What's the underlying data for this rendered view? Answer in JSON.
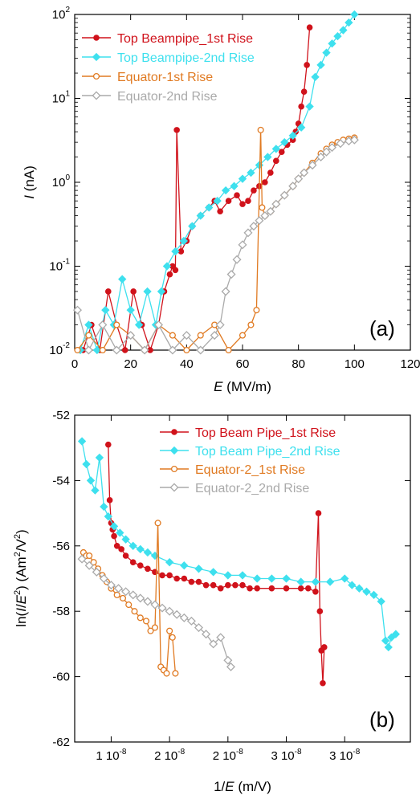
{
  "chart_data": [
    {
      "type": "scatter",
      "panel_label": "(a)",
      "xlabel": {
        "var": "E",
        "unit": " (MV/m)"
      },
      "ylabel": {
        "var": "I",
        "unit": " (nA)"
      },
      "xlim": [
        0,
        120
      ],
      "ylim": [
        0.01,
        100
      ],
      "yscale": "log",
      "xticks": [
        0,
        20,
        40,
        60,
        80,
        100,
        120
      ],
      "xtick_labels": [
        "0",
        "20",
        "40",
        "60",
        "80",
        "100",
        "120"
      ],
      "yticks": [
        0.01,
        0.1,
        1,
        10,
        100
      ],
      "ytick_labels": [
        {
          "base": "10",
          "exp": "-2"
        },
        {
          "base": "10",
          "exp": "-1"
        },
        {
          "base": "10",
          "exp": "0"
        },
        {
          "base": "10",
          "exp": "1"
        },
        {
          "base": "10",
          "exp": "2"
        }
      ],
      "grid": false,
      "legend": "top-left",
      "series": [
        {
          "name": "Top Beampipe_1st Rise",
          "color": "#d0121b",
          "marker": "circle-filled",
          "x": [
            3,
            6,
            9,
            12,
            15,
            18,
            21,
            24,
            27,
            30,
            32,
            34,
            35,
            36,
            36.5,
            38,
            40,
            42,
            45,
            48,
            50,
            52,
            55,
            58,
            60,
            62,
            64,
            66,
            68,
            70,
            72,
            74,
            76,
            78,
            79,
            80,
            81,
            82,
            83,
            84
          ],
          "y": [
            0.01,
            0.02,
            0.01,
            0.05,
            0.02,
            0.01,
            0.05,
            0.02,
            0.01,
            0.02,
            0.05,
            0.08,
            0.1,
            0.09,
            4.2,
            0.15,
            0.2,
            0.3,
            0.4,
            0.5,
            0.6,
            0.45,
            0.6,
            0.7,
            0.55,
            0.6,
            0.8,
            0.9,
            1.0,
            1.3,
            1.8,
            2.3,
            2.8,
            3.2,
            4.0,
            5.0,
            8.0,
            12,
            25,
            70
          ]
        },
        {
          "name": "Top Beampipe-2nd Rise",
          "color": "#3ee0ee",
          "marker": "diamond-filled",
          "x": [
            2,
            5,
            8,
            11,
            14,
            17,
            20,
            23,
            26,
            29,
            31,
            33,
            36,
            39,
            42,
            45,
            48,
            51,
            54,
            57,
            60,
            63,
            66,
            69,
            72,
            75,
            78,
            81,
            84,
            86,
            88,
            90,
            92,
            94,
            96,
            98,
            100
          ],
          "y": [
            0.01,
            0.02,
            0.01,
            0.03,
            0.02,
            0.07,
            0.03,
            0.02,
            0.05,
            0.02,
            0.05,
            0.1,
            0.15,
            0.2,
            0.3,
            0.4,
            0.5,
            0.6,
            0.8,
            0.9,
            1.1,
            1.3,
            1.6,
            2.0,
            2.5,
            3.0,
            3.6,
            4.5,
            8.0,
            18,
            25,
            35,
            45,
            55,
            65,
            80,
            100
          ]
        },
        {
          "name": "Equator-1st Rise",
          "color": "#e07a22",
          "marker": "circle-open",
          "x": [
            1,
            5,
            10,
            15,
            20,
            25,
            30,
            35,
            40,
            45,
            50,
            55,
            60,
            63,
            65,
            66.5,
            67,
            68,
            70,
            72,
            75,
            78,
            80,
            82,
            85,
            88,
            90,
            92,
            94,
            96,
            98,
            100
          ],
          "y": [
            0.01,
            0.015,
            0.01,
            0.02,
            0.015,
            0.01,
            0.02,
            0.015,
            0.01,
            0.015,
            0.02,
            0.01,
            0.015,
            0.02,
            0.03,
            4.2,
            0.5,
            0.4,
            0.45,
            0.55,
            0.7,
            0.9,
            1.1,
            1.3,
            1.7,
            2.2,
            2.5,
            2.8,
            3.0,
            3.2,
            3.3,
            3.4
          ]
        },
        {
          "name": "Equator-2nd Rise",
          "color": "#aaaaaa",
          "marker": "diamond-open",
          "x": [
            1,
            5,
            10,
            15,
            20,
            25,
            30,
            35,
            40,
            45,
            50,
            52,
            54,
            56,
            58,
            60,
            62,
            64,
            66,
            68,
            70,
            72,
            75,
            78,
            80,
            82,
            85,
            88,
            90,
            92,
            95,
            98,
            100
          ],
          "y": [
            0.03,
            0.01,
            0.02,
            0.01,
            0.015,
            0.01,
            0.02,
            0.01,
            0.015,
            0.01,
            0.015,
            0.02,
            0.05,
            0.08,
            0.12,
            0.18,
            0.25,
            0.3,
            0.35,
            0.4,
            0.45,
            0.55,
            0.7,
            0.9,
            1.1,
            1.3,
            1.6,
            2.0,
            2.3,
            2.6,
            2.9,
            3.1,
            3.2
          ]
        }
      ]
    },
    {
      "type": "scatter",
      "panel_label": "(b)",
      "xlabel": {
        "pre": "1/",
        "var": "E",
        "unit": " (m/V)"
      },
      "ylabel": {
        "pre": "ln(",
        "var1": "I",
        "slash": "/",
        "var2": "E",
        "sup": "2",
        "unit_a": ") (Am",
        "sup2": "2",
        "unit_b": "/V",
        "sup3": "2",
        "unit_c": ")"
      },
      "xlim": [
        0.95,
        3.25
      ],
      "ylim": [
        -62,
        -52
      ],
      "xticks": [
        1.2,
        1.6,
        2.0,
        2.4,
        2.8
      ],
      "xtick_labels": [
        {
          "mant": "1",
          "base": " 10",
          "exp": "-8"
        },
        {
          "mant": "2",
          "base": " 10",
          "exp": "-8"
        },
        {
          "mant": "2",
          "base": " 10",
          "exp": "-8"
        },
        {
          "mant": "3",
          "base": " 10",
          "exp": "-8"
        },
        {
          "mant": "3",
          "base": " 10",
          "exp": "-8"
        }
      ],
      "yticks": [
        -62,
        -60,
        -58,
        -56,
        -54,
        -52
      ],
      "ytick_labels": [
        "-62",
        "-60",
        "-58",
        "-56",
        "-54",
        "-52"
      ],
      "grid": false,
      "legend": "top-right",
      "series": [
        {
          "name": "Top Beam Pipe_1st Rise",
          "color": "#d0121b",
          "marker": "circle-filled",
          "x": [
            1.18,
            1.19,
            1.2,
            1.21,
            1.22,
            1.24,
            1.27,
            1.3,
            1.35,
            1.4,
            1.45,
            1.5,
            1.55,
            1.6,
            1.65,
            1.7,
            1.75,
            1.8,
            1.85,
            1.9,
            1.95,
            2.0,
            2.05,
            2.1,
            2.15,
            2.2,
            2.3,
            2.4,
            2.5,
            2.55,
            2.6,
            2.62,
            2.63,
            2.64,
            2.65,
            2.66
          ],
          "y": [
            -52.9,
            -54.6,
            -55.3,
            -55.5,
            -55.7,
            -56.0,
            -56.1,
            -56.3,
            -56.5,
            -56.6,
            -56.7,
            -56.8,
            -56.9,
            -56.9,
            -57.0,
            -57.0,
            -57.1,
            -57.1,
            -57.2,
            -57.2,
            -57.3,
            -57.2,
            -57.2,
            -57.2,
            -57.3,
            -57.3,
            -57.3,
            -57.3,
            -57.3,
            -57.3,
            -57.4,
            -55.0,
            -58.0,
            -59.2,
            -60.2,
            -59.1
          ]
        },
        {
          "name": "Top Beam Pipe_2nd Rise",
          "color": "#3ee0ee",
          "marker": "diamond-filled",
          "x": [
            1.0,
            1.03,
            1.06,
            1.09,
            1.12,
            1.15,
            1.18,
            1.22,
            1.26,
            1.3,
            1.35,
            1.4,
            1.45,
            1.5,
            1.6,
            1.7,
            1.8,
            1.9,
            2.0,
            2.1,
            2.2,
            2.3,
            2.4,
            2.5,
            2.6,
            2.7,
            2.8,
            2.85,
            2.9,
            2.95,
            3.0,
            3.05,
            3.08,
            3.1,
            3.12,
            3.15
          ],
          "y": [
            -52.8,
            -53.5,
            -54.0,
            -54.3,
            -53.3,
            -54.8,
            -55.1,
            -55.4,
            -55.6,
            -55.8,
            -56.0,
            -56.1,
            -56.2,
            -56.3,
            -56.5,
            -56.6,
            -56.7,
            -56.8,
            -56.9,
            -56.9,
            -57.0,
            -57.0,
            -57.0,
            -57.1,
            -57.1,
            -57.1,
            -57.0,
            -57.2,
            -57.3,
            -57.4,
            -57.5,
            -57.7,
            -58.9,
            -59.1,
            -58.8,
            -58.7
          ]
        },
        {
          "name": "Equator-2_1st Rise",
          "color": "#e07a22",
          "marker": "circle-open",
          "x": [
            1.01,
            1.03,
            1.05,
            1.08,
            1.11,
            1.14,
            1.17,
            1.2,
            1.24,
            1.28,
            1.32,
            1.36,
            1.4,
            1.44,
            1.47,
            1.5,
            1.52,
            1.54,
            1.56,
            1.58,
            1.6,
            1.62,
            1.64
          ],
          "y": [
            -56.2,
            -56.3,
            -56.3,
            -56.5,
            -56.7,
            -56.9,
            -57.1,
            -57.3,
            -57.5,
            -57.6,
            -57.8,
            -58.0,
            -58.2,
            -58.3,
            -58.6,
            -58.5,
            -55.3,
            -59.7,
            -59.8,
            -59.9,
            -58.6,
            -58.8,
            -59.9
          ]
        },
        {
          "name": "Equator-2_2nd Rise",
          "color": "#aaaaaa",
          "marker": "diamond-open",
          "x": [
            1.0,
            1.05,
            1.1,
            1.15,
            1.2,
            1.25,
            1.3,
            1.35,
            1.4,
            1.45,
            1.5,
            1.55,
            1.6,
            1.65,
            1.7,
            1.75,
            1.8,
            1.85,
            1.9,
            1.95,
            2.0,
            2.02
          ],
          "y": [
            -56.4,
            -56.6,
            -56.8,
            -57.0,
            -57.2,
            -57.3,
            -57.4,
            -57.5,
            -57.6,
            -57.7,
            -57.8,
            -57.9,
            -58.0,
            -58.1,
            -58.2,
            -58.3,
            -58.5,
            -58.7,
            -59.0,
            -58.8,
            -59.5,
            -59.7
          ]
        }
      ]
    }
  ]
}
